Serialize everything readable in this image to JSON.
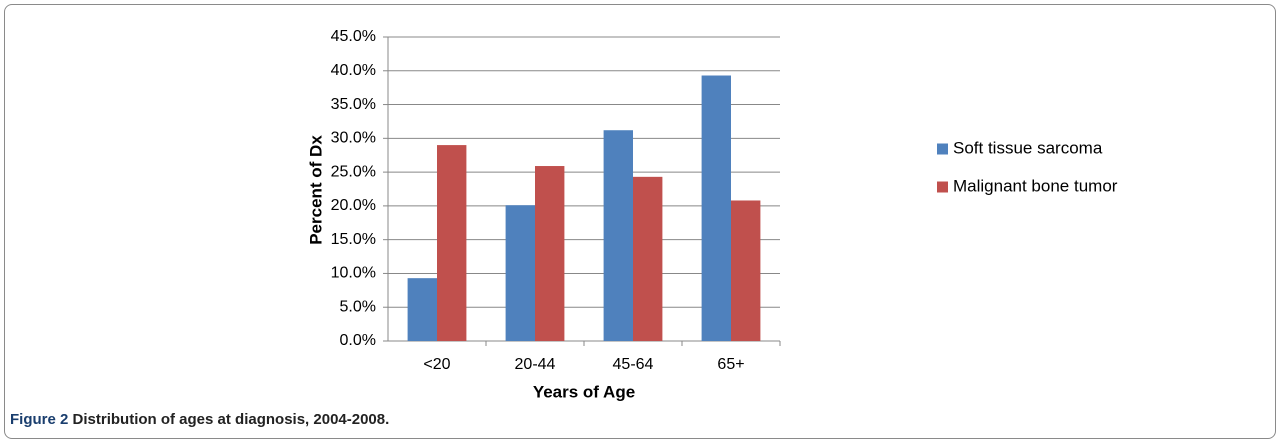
{
  "chart_data": {
    "type": "bar",
    "categories": [
      "<20",
      "20-44",
      "45-64",
      "65+"
    ],
    "series": [
      {
        "name": "Soft tissue sarcoma",
        "color": "#4f81bd",
        "values": [
          9.3,
          20.1,
          31.2,
          39.3
        ]
      },
      {
        "name": "Malignant bone tumor",
        "color": "#c0504d",
        "values": [
          29.0,
          25.9,
          24.3,
          20.8
        ]
      }
    ],
    "x_label": "Years of Age",
    "y_label": "Percent of Dx",
    "ylim": [
      0,
      45
    ],
    "yticks": [
      {
        "value": 0,
        "label": "0.0%"
      },
      {
        "value": 5,
        "label": "5.0%"
      },
      {
        "value": 10,
        "label": "10.0%"
      },
      {
        "value": 15,
        "label": "15.0%"
      },
      {
        "value": 20,
        "label": "20.0%"
      },
      {
        "value": 25,
        "label": "25.0%"
      },
      {
        "value": 30,
        "label": "30.0%"
      },
      {
        "value": 35,
        "label": "35.0%"
      },
      {
        "value": 40,
        "label": "40.0%"
      },
      {
        "value": 45,
        "label": "45.0%"
      }
    ],
    "grid": true,
    "legend": "right"
  },
  "caption": {
    "label": "Figure 2",
    "text": "Distribution of ages at diagnosis, 2004-2008."
  }
}
